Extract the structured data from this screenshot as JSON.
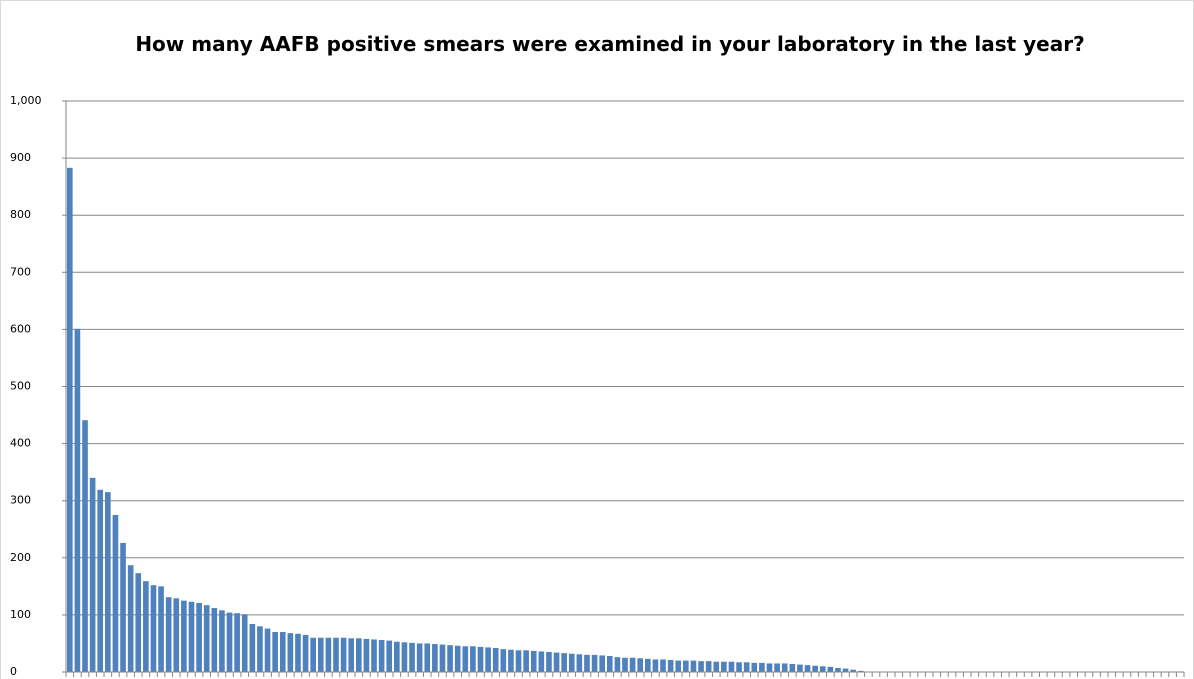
{
  "chart_data": {
    "type": "bar",
    "title": "How many AAFB positive smears were examined in your laboratory in the last year?",
    "categories": [
      null,
      null,
      null,
      null,
      null,
      null,
      null,
      null,
      null,
      null,
      null,
      null,
      null,
      null,
      null,
      null,
      null,
      null,
      null,
      null,
      null,
      null,
      null,
      null,
      null,
      null,
      null,
      null,
      null,
      null,
      null,
      null,
      null,
      null,
      null,
      null,
      null,
      null,
      null,
      null,
      null,
      null,
      null,
      null,
      null,
      null,
      null,
      null,
      null,
      null,
      null,
      null,
      null,
      null,
      null,
      null,
      null,
      null,
      null,
      null,
      null,
      null,
      null,
      null,
      null,
      null,
      null,
      null,
      null,
      null,
      null,
      null,
      null,
      null,
      null,
      null,
      null,
      null,
      null,
      null,
      null,
      null,
      null,
      null,
      null,
      null,
      null,
      null,
      null,
      null,
      null,
      null,
      null,
      null,
      null,
      null,
      null,
      null,
      null,
      null,
      null,
      null,
      null,
      null,
      null,
      null,
      null,
      null,
      null,
      null,
      null,
      null,
      null,
      null,
      null,
      null,
      null,
      null,
      null,
      null,
      null,
      null,
      null,
      null,
      null,
      null,
      null,
      null,
      null,
      null,
      null,
      null,
      null,
      null,
      null,
      null,
      null,
      null,
      null,
      null,
      null,
      null,
      null,
      null,
      null,
      null,
      null
    ],
    "values": [
      883,
      601,
      441,
      340,
      319,
      315,
      275,
      226,
      187,
      173,
      159,
      152,
      150,
      131,
      129,
      125,
      123,
      121,
      117,
      112,
      108,
      104,
      103,
      101,
      84,
      80,
      76,
      70,
      70,
      68,
      67,
      65,
      60,
      60,
      60,
      60,
      60,
      59,
      59,
      58,
      57,
      56,
      55,
      53,
      52,
      51,
      50,
      50,
      49,
      48,
      47,
      46,
      45,
      45,
      44,
      43,
      42,
      40,
      39,
      38,
      38,
      37,
      36,
      35,
      34,
      33,
      32,
      31,
      30,
      30,
      29,
      28,
      26,
      25,
      25,
      24,
      23,
      22,
      22,
      21,
      20,
      20,
      20,
      19,
      19,
      18,
      18,
      18,
      17,
      17,
      16,
      16,
      15,
      15,
      15,
      14,
      13,
      12,
      11,
      10,
      9,
      7,
      6,
      4,
      2,
      0,
      0,
      0,
      0,
      0,
      0,
      0,
      0,
      0,
      0,
      0,
      0,
      0,
      0,
      0,
      0,
      0,
      0,
      0,
      0,
      0,
      0,
      0,
      0,
      0,
      0,
      0,
      0,
      0,
      0,
      0,
      0,
      0,
      0,
      0,
      0,
      0,
      0,
      0,
      0,
      0,
      0
    ],
    "color": "#4f81bd",
    "ylim": [
      0,
      1000
    ],
    "yticks": [
      0,
      100,
      200,
      300,
      400,
      500,
      600,
      700,
      800,
      900,
      {
        "value": 1000,
        "label": "1,000"
      }
    ],
    "grid": true
  }
}
